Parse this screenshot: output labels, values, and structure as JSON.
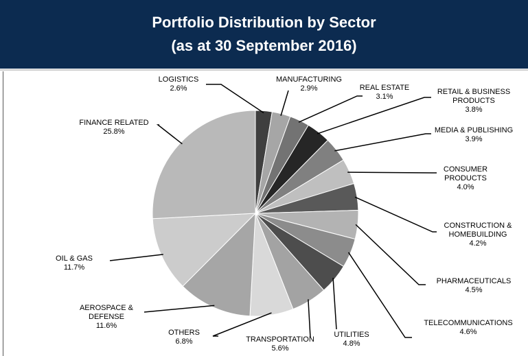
{
  "chart_data": {
    "type": "pie",
    "title": "Portfolio Distribution by Sector",
    "subtitle": "(as at 30 September 2016)",
    "categories": [
      "LOGISTICS",
      "MANUFACTURING",
      "REAL ESTATE",
      "RETAIL & BUSINESS\nPRODUCTS",
      "MEDIA & PUBLISHING",
      "CONSUMER\nPRODUCTS",
      "CONSTRUCTION &\nHOMEBUILDING",
      "PHARMACEUTICALS",
      "TELECOMMUNICATIONS",
      "UTILITIES",
      "TRANSPORTATION",
      "OTHERS",
      "AEROSPACE &\nDEFENSE",
      "OIL & GAS",
      "FINANCE RELATED"
    ],
    "values": [
      2.6,
      2.9,
      3.1,
      3.8,
      3.9,
      4.0,
      4.2,
      4.5,
      4.6,
      4.8,
      5.6,
      6.8,
      11.6,
      11.7,
      25.8
    ],
    "value_labels": [
      "2.6%",
      "2.9%",
      "3.1%",
      "3.8%",
      "3.9%",
      "4.0%",
      "4.2%",
      "4.5%",
      "4.6%",
      "4.8%",
      "5.6%",
      "6.8%",
      "11.6%",
      "11.7%",
      "25.8%"
    ],
    "colors": [
      "#3f3f3f",
      "#a6a6a6",
      "#737373",
      "#262626",
      "#808080",
      "#bfbfbf",
      "#595959",
      "#b3b3b3",
      "#8c8c8c",
      "#4d4d4d",
      "#a3a3a3",
      "#d9d9d9",
      "#a6a6a6",
      "#cccccc",
      "#b9b9b9"
    ]
  }
}
